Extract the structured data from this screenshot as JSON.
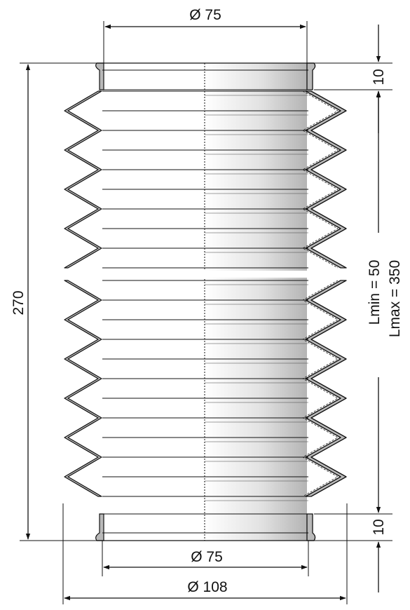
{
  "dimensions": {
    "top_diameter": "Ø 75",
    "bottom_inner_diameter": "Ø 75",
    "outer_diameter": "Ø 108",
    "top_collar": "10",
    "bottom_collar": "10",
    "total_length": "270",
    "lmin": "Lmin =   50",
    "lmax": "Lmax = 350"
  },
  "colors": {
    "line": "#111111",
    "material_gray": "#b9b9b9",
    "background": "#ffffff"
  }
}
